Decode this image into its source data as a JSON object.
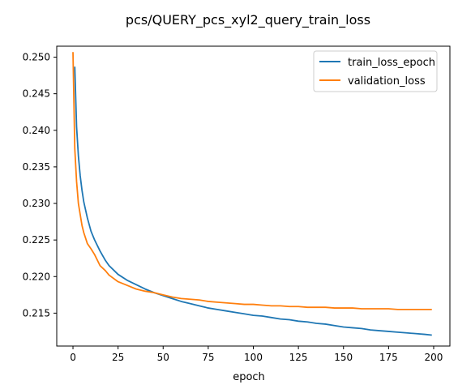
{
  "chart_data": {
    "type": "line",
    "title": "pcs/QUERY_pcs_xyl2_query_train_loss",
    "xlabel": "epoch",
    "ylabel": "",
    "xlim": [
      -9,
      209
    ],
    "ylim": [
      0.2105,
      0.2515
    ],
    "xticks": [
      0,
      25,
      50,
      75,
      100,
      125,
      150,
      175,
      200
    ],
    "yticks": [
      0.215,
      0.22,
      0.225,
      0.23,
      0.235,
      0.24,
      0.245,
      0.25
    ],
    "ytick_labels": [
      "0.215",
      "0.220",
      "0.225",
      "0.230",
      "0.235",
      "0.240",
      "0.245",
      "0.250"
    ],
    "grid": false,
    "legend_position": "top-right",
    "series": [
      {
        "name": "train_loss_epoch",
        "color": "#1f77b4",
        "x": [
          1,
          2,
          3,
          4,
          5,
          6,
          8,
          10,
          12,
          15,
          18,
          20,
          25,
          30,
          35,
          40,
          45,
          50,
          55,
          60,
          65,
          70,
          75,
          80,
          85,
          90,
          95,
          100,
          105,
          110,
          115,
          120,
          125,
          130,
          135,
          140,
          145,
          150,
          155,
          160,
          165,
          170,
          175,
          180,
          185,
          190,
          195,
          199
        ],
        "y": [
          0.2487,
          0.2405,
          0.2365,
          0.2338,
          0.2318,
          0.2302,
          0.228,
          0.2262,
          0.225,
          0.2235,
          0.2222,
          0.2215,
          0.2203,
          0.2195,
          0.2189,
          0.2183,
          0.2178,
          0.2174,
          0.217,
          0.2166,
          0.2163,
          0.216,
          0.2157,
          0.2155,
          0.2153,
          0.2151,
          0.2149,
          0.2147,
          0.2146,
          0.2144,
          0.2142,
          0.2141,
          0.2139,
          0.2138,
          0.2136,
          0.2135,
          0.2133,
          0.2131,
          0.213,
          0.2129,
          0.2127,
          0.2126,
          0.2125,
          0.2124,
          0.2123,
          0.2122,
          0.2121,
          0.212
        ]
      },
      {
        "name": "validation_loss",
        "color": "#ff7f0e",
        "x": [
          0,
          1,
          2,
          3,
          4,
          5,
          6,
          8,
          10,
          12,
          15,
          18,
          20,
          25,
          30,
          35,
          40,
          45,
          50,
          55,
          60,
          65,
          70,
          75,
          80,
          85,
          90,
          95,
          100,
          105,
          110,
          115,
          120,
          125,
          130,
          135,
          140,
          145,
          150,
          155,
          160,
          165,
          170,
          175,
          180,
          185,
          190,
          195,
          199
        ],
        "y": [
          0.2507,
          0.2375,
          0.233,
          0.23,
          0.2285,
          0.227,
          0.226,
          0.2245,
          0.2238,
          0.223,
          0.2215,
          0.2208,
          0.2202,
          0.2193,
          0.2188,
          0.2183,
          0.218,
          0.2178,
          0.2175,
          0.2172,
          0.217,
          0.2169,
          0.2168,
          0.2166,
          0.2165,
          0.2164,
          0.2163,
          0.2162,
          0.2162,
          0.2161,
          0.216,
          0.216,
          0.2159,
          0.2159,
          0.2158,
          0.2158,
          0.2158,
          0.2157,
          0.2157,
          0.2157,
          0.2156,
          0.2156,
          0.2156,
          0.2156,
          0.2155,
          0.2155,
          0.2155,
          0.2155,
          0.2155
        ]
      }
    ]
  }
}
